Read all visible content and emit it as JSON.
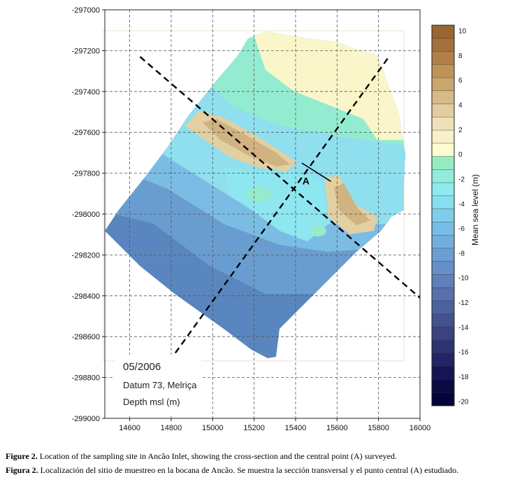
{
  "chart_data": {
    "type": "heatmap",
    "title": "05/2006",
    "annotations": [
      "Datum 73, Melriça",
      "Depth msl (m)"
    ],
    "point_label": "A",
    "xlim": [
      14480,
      16000
    ],
    "ylim": [
      -299000,
      -297000
    ],
    "x_ticks": [
      14600,
      14800,
      15000,
      15200,
      15400,
      15600,
      15800,
      16000
    ],
    "y_ticks": [
      -297000,
      -297200,
      -297400,
      -297600,
      -297800,
      -298000,
      -298200,
      -298400,
      -298600,
      -298800,
      -299000
    ],
    "colorbar": {
      "label": "Mean sea level (m)",
      "tick_values": [
        10,
        8,
        6,
        4,
        2,
        0,
        -2,
        -4,
        -6,
        -8,
        -10,
        -12,
        -14,
        -16,
        -18,
        -20
      ],
      "colors": [
        "#996633",
        "#a5703b",
        "#b18049",
        "#bf9358",
        "#cba66d",
        "#d7ba88",
        "#e2cda0",
        "#eee0b8",
        "#f8f0c6",
        "#fdfbd0",
        "#96ecc1",
        "#91ecda",
        "#8eeaee",
        "#87def0",
        "#7fcdec",
        "#78bde6",
        "#72aedc",
        "#6b9ed2",
        "#668fc6",
        "#5f80b9",
        "#5671ac",
        "#4d619c",
        "#44528e",
        "#3a4280",
        "#2e3373",
        "#222463",
        "#161553",
        "#0a0a44",
        "#03043a"
      ]
    },
    "sections": [
      {
        "name": "cross-section line 1",
        "from": [
          14650,
          -297230
        ],
        "to": [
          16000,
          -298410
        ]
      },
      {
        "name": "cross-section line 2",
        "from": [
          14820,
          -298680
        ],
        "to": [
          15850,
          -297230
        ]
      }
    ],
    "point_A": [
      15460,
      -297800
    ]
  },
  "captions": {
    "en_label": "Figure 2.",
    "en_text": " Location of the sampling site in Ancão Inlet, showing the cross-section and the central point (A) surveyed.",
    "es_label": "Figura 2.",
    "es_text": " Localización del sitio de muestreo en la bocana de Ancão. Se muestra la sección transversal y el punto central (A) estudiado."
  }
}
